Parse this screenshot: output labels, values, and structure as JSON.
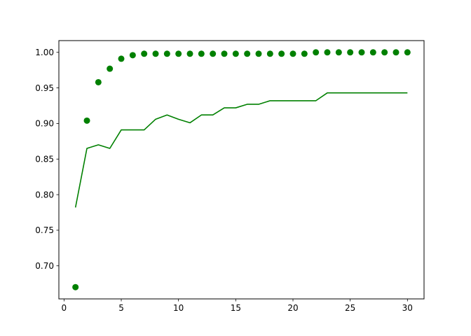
{
  "chart_data": {
    "type": "line",
    "title": "",
    "xlabel": "",
    "ylabel": "",
    "xlim": [
      -0.45,
      31.45
    ],
    "ylim": [
      0.6535,
      1.0165
    ],
    "x_ticks": [
      0,
      5,
      10,
      15,
      20,
      25,
      30
    ],
    "y_ticks": [
      0.7,
      0.75,
      0.8,
      0.85,
      0.9,
      0.95,
      1.0
    ],
    "x_tick_labels": [
      "0",
      "5",
      "10",
      "15",
      "20",
      "25",
      "30"
    ],
    "y_tick_labels": [
      "0.70",
      "0.75",
      "0.80",
      "0.85",
      "0.90",
      "0.95",
      "1.00"
    ],
    "grid": false,
    "legend": "none",
    "x": [
      1,
      2,
      3,
      4,
      5,
      6,
      7,
      8,
      9,
      10,
      11,
      12,
      13,
      14,
      15,
      16,
      17,
      18,
      19,
      20,
      21,
      22,
      23,
      24,
      25,
      26,
      27,
      28,
      29,
      30
    ],
    "series": [
      {
        "style": "scatter",
        "color": "#008000",
        "values": [
          0.67,
          0.904,
          0.958,
          0.977,
          0.991,
          0.996,
          0.998,
          0.998,
          0.998,
          0.998,
          0.998,
          0.998,
          0.998,
          0.998,
          0.998,
          0.998,
          0.998,
          0.998,
          0.998,
          0.998,
          0.998,
          1.0,
          1.0,
          1.0,
          1.0,
          1.0,
          1.0,
          1.0,
          1.0,
          1.0
        ]
      },
      {
        "style": "line",
        "color": "#008000",
        "values": [
          0.782,
          0.865,
          0.87,
          0.865,
          0.891,
          0.891,
          0.891,
          0.906,
          0.912,
          0.906,
          0.901,
          0.912,
          0.912,
          0.922,
          0.922,
          0.927,
          0.927,
          0.932,
          0.932,
          0.932,
          0.932,
          0.932,
          0.943,
          0.943,
          0.943,
          0.943,
          0.943,
          0.943,
          0.943,
          0.943
        ]
      }
    ]
  }
}
